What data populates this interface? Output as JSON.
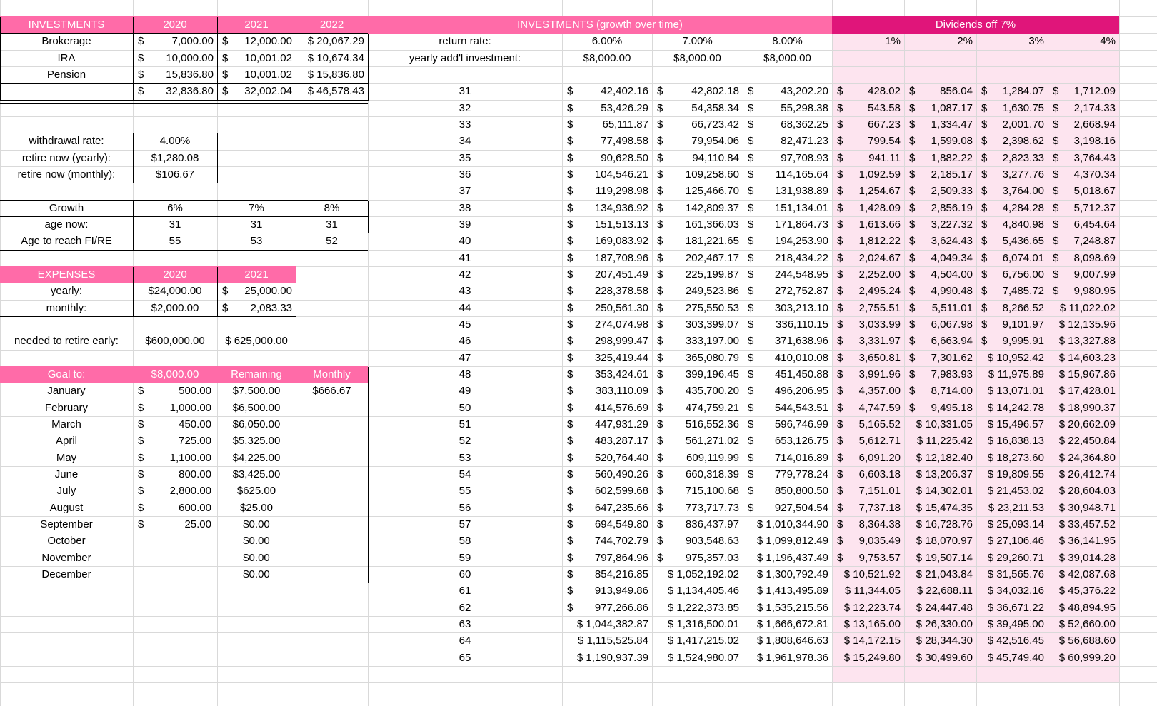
{
  "colors": {
    "header_pink": "#ff6ba8",
    "header_dark": "#e0157a",
    "dividend_fill": "#fde4ef",
    "gridline": "#d9d9d9"
  },
  "investments": {
    "title": "INVESTMENTS",
    "years": [
      "2020",
      "2021",
      "2022"
    ],
    "rows": [
      {
        "label": "Brokerage",
        "values": [
          "7,000.00",
          "12,000.00",
          "$ 20,067.29"
        ]
      },
      {
        "label": "IRA",
        "values": [
          "10,000.00",
          "10,001.02",
          "$ 10,674.34"
        ]
      },
      {
        "label": "Pension",
        "values": [
          "15,836.80",
          "10,001.02",
          "$ 15,836.80"
        ]
      }
    ],
    "totals": [
      "32,836.80",
      "32,002.04",
      "$ 46,578.43"
    ]
  },
  "withdrawal": {
    "rows": [
      {
        "label": "withdrawal rate:",
        "value": "4.00%"
      },
      {
        "label": "retire now (yearly):",
        "value": "$1,280.08"
      },
      {
        "label": "retire now (monthly):",
        "value": "$106.67"
      }
    ]
  },
  "growth": {
    "header": {
      "label": "Growth",
      "values": [
        "6%",
        "7%",
        "8%"
      ]
    },
    "rows": [
      {
        "label": "age now:",
        "values": [
          "31",
          "31",
          "31"
        ]
      },
      {
        "label": "Age to reach FI/RE",
        "values": [
          "55",
          "53",
          "52"
        ]
      }
    ]
  },
  "expenses": {
    "title": "EXPENSES",
    "years": [
      "2020",
      "2021"
    ],
    "rows": [
      {
        "label": "yearly:",
        "values": [
          "$24,000.00",
          "25,000.00"
        ]
      },
      {
        "label": "monthly:",
        "values": [
          "$2,000.00",
          "2,083.33"
        ]
      }
    ],
    "retire_label": "needed to retire early:",
    "retire_values": [
      "$600,000.00",
      "$ 625,000.00"
    ]
  },
  "goal": {
    "headers": [
      "Goal to:",
      "$8,000.00",
      "Remaining",
      "Monthly"
    ],
    "monthly": "$666.67",
    "rows": [
      {
        "month": "January",
        "amount": "500.00",
        "remaining": "$7,500.00"
      },
      {
        "month": "February",
        "amount": "1,000.00",
        "remaining": "$6,500.00"
      },
      {
        "month": "March",
        "amount": "450.00",
        "remaining": "$6,050.00"
      },
      {
        "month": "April",
        "amount": "725.00",
        "remaining": "$5,325.00"
      },
      {
        "month": "May",
        "amount": "1,100.00",
        "remaining": "$4,225.00"
      },
      {
        "month": "June",
        "amount": "800.00",
        "remaining": "$3,425.00"
      },
      {
        "month": "July",
        "amount": "2,800.00",
        "remaining": "$625.00"
      },
      {
        "month": "August",
        "amount": "600.00",
        "remaining": "$25.00"
      },
      {
        "month": "September",
        "amount": "25.00",
        "remaining": "$0.00"
      },
      {
        "month": "October",
        "amount": "",
        "remaining": "$0.00"
      },
      {
        "month": "November",
        "amount": "",
        "remaining": "$0.00"
      },
      {
        "month": "December",
        "amount": "",
        "remaining": "$0.00"
      }
    ]
  },
  "growth_table": {
    "title": "INVESTMENTS (growth over time)",
    "return_label": "return rate:",
    "return_rates": [
      "6.00%",
      "7.00%",
      "8.00%"
    ],
    "add_label": "yearly add'l investment:",
    "add_values": [
      "$8,000.00",
      "$8,000.00",
      "$8,000.00"
    ],
    "dividends_title": "Dividends off 7%",
    "dividend_rates": [
      "1%",
      "2%",
      "3%",
      "4%"
    ],
    "rows": [
      {
        "age": "31",
        "g": [
          "42,402.16",
          "42,802.18",
          "43,202.20"
        ],
        "d": [
          "428.02",
          "856.04",
          "1,284.07",
          "1,712.09"
        ]
      },
      {
        "age": "32",
        "g": [
          "53,426.29",
          "54,358.34",
          "55,298.38"
        ],
        "d": [
          "543.58",
          "1,087.17",
          "1,630.75",
          "2,174.33"
        ]
      },
      {
        "age": "33",
        "g": [
          "65,111.87",
          "66,723.42",
          "68,362.25"
        ],
        "d": [
          "667.23",
          "1,334.47",
          "2,001.70",
          "2,668.94"
        ]
      },
      {
        "age": "34",
        "g": [
          "77,498.58",
          "79,954.06",
          "82,471.23"
        ],
        "d": [
          "799.54",
          "1,599.08",
          "2,398.62",
          "3,198.16"
        ]
      },
      {
        "age": "35",
        "g": [
          "90,628.50",
          "94,110.84",
          "97,708.93"
        ],
        "d": [
          "941.11",
          "1,882.22",
          "2,823.33",
          "3,764.43"
        ]
      },
      {
        "age": "36",
        "g": [
          "104,546.21",
          "109,258.60",
          "114,165.64"
        ],
        "d": [
          "1,092.59",
          "2,185.17",
          "3,277.76",
          "4,370.34"
        ]
      },
      {
        "age": "37",
        "g": [
          "119,298.98",
          "125,466.70",
          "131,938.89"
        ],
        "d": [
          "1,254.67",
          "2,509.33",
          "3,764.00",
          "5,018.67"
        ]
      },
      {
        "age": "38",
        "g": [
          "134,936.92",
          "142,809.37",
          "151,134.01"
        ],
        "d": [
          "1,428.09",
          "2,856.19",
          "4,284.28",
          "5,712.37"
        ]
      },
      {
        "age": "39",
        "g": [
          "151,513.13",
          "161,366.03",
          "171,864.73"
        ],
        "d": [
          "1,613.66",
          "3,227.32",
          "4,840.98",
          "6,454.64"
        ]
      },
      {
        "age": "40",
        "g": [
          "169,083.92",
          "181,221.65",
          "194,253.90"
        ],
        "d": [
          "1,812.22",
          "3,624.43",
          "5,436.65",
          "7,248.87"
        ]
      },
      {
        "age": "41",
        "g": [
          "187,708.96",
          "202,467.17",
          "218,434.22"
        ],
        "d": [
          "2,024.67",
          "4,049.34",
          "6,074.01",
          "8,098.69"
        ]
      },
      {
        "age": "42",
        "g": [
          "207,451.49",
          "225,199.87",
          "244,548.95"
        ],
        "d": [
          "2,252.00",
          "4,504.00",
          "6,756.00",
          "9,007.99"
        ]
      },
      {
        "age": "43",
        "g": [
          "228,378.58",
          "249,523.86",
          "272,752.87"
        ],
        "d": [
          "2,495.24",
          "4,990.48",
          "7,485.72",
          "9,980.95"
        ]
      },
      {
        "age": "44",
        "g": [
          "250,561.30",
          "275,550.53",
          "303,213.10"
        ],
        "d": [
          "2,755.51",
          "5,511.01",
          "8,266.52",
          "$ 11,022.02"
        ]
      },
      {
        "age": "45",
        "g": [
          "274,074.98",
          "303,399.07",
          "336,110.15"
        ],
        "d": [
          "3,033.99",
          "6,067.98",
          "9,101.97",
          "$ 12,135.96"
        ]
      },
      {
        "age": "46",
        "g": [
          "298,999.47",
          "333,197.00",
          "371,638.96"
        ],
        "d": [
          "3,331.97",
          "6,663.94",
          "9,995.91",
          "$ 13,327.88"
        ]
      },
      {
        "age": "47",
        "g": [
          "325,419.44",
          "365,080.79",
          "410,010.08"
        ],
        "d": [
          "3,650.81",
          "7,301.62",
          "$ 10,952.42",
          "$ 14,603.23"
        ]
      },
      {
        "age": "48",
        "g": [
          "353,424.61",
          "399,196.45",
          "451,450.88"
        ],
        "d": [
          "3,991.96",
          "7,983.93",
          "$ 11,975.89",
          "$ 15,967.86"
        ]
      },
      {
        "age": "49",
        "g": [
          "383,110.09",
          "435,700.20",
          "496,206.95"
        ],
        "d": [
          "4,357.00",
          "8,714.00",
          "$ 13,071.01",
          "$ 17,428.01"
        ]
      },
      {
        "age": "50",
        "g": [
          "414,576.69",
          "474,759.21",
          "544,543.51"
        ],
        "d": [
          "4,747.59",
          "9,495.18",
          "$ 14,242.78",
          "$ 18,990.37"
        ]
      },
      {
        "age": "51",
        "g": [
          "447,931.29",
          "516,552.36",
          "596,746.99"
        ],
        "d": [
          "5,165.52",
          "$ 10,331.05",
          "$ 15,496.57",
          "$ 20,662.09"
        ]
      },
      {
        "age": "52",
        "g": [
          "483,287.17",
          "561,271.02",
          "653,126.75"
        ],
        "d": [
          "5,612.71",
          "$ 11,225.42",
          "$ 16,838.13",
          "$ 22,450.84"
        ]
      },
      {
        "age": "53",
        "g": [
          "520,764.40",
          "609,119.99",
          "714,016.89"
        ],
        "d": [
          "6,091.20",
          "$ 12,182.40",
          "$ 18,273.60",
          "$ 24,364.80"
        ]
      },
      {
        "age": "54",
        "g": [
          "560,490.26",
          "660,318.39",
          "779,778.24"
        ],
        "d": [
          "6,603.18",
          "$ 13,206.37",
          "$ 19,809.55",
          "$ 26,412.74"
        ]
      },
      {
        "age": "55",
        "g": [
          "602,599.68",
          "715,100.68",
          "850,800.50"
        ],
        "d": [
          "7,151.01",
          "$ 14,302.01",
          "$ 21,453.02",
          "$ 28,604.03"
        ]
      },
      {
        "age": "56",
        "g": [
          "647,235.66",
          "773,717.73",
          "927,504.54"
        ],
        "d": [
          "7,737.18",
          "$ 15,474.35",
          "$ 23,211.53",
          "$ 30,948.71"
        ]
      },
      {
        "age": "57",
        "g": [
          "694,549.80",
          "836,437.97",
          "$ 1,010,344.90"
        ],
        "d": [
          "8,364.38",
          "$ 16,728.76",
          "$ 25,093.14",
          "$ 33,457.52"
        ]
      },
      {
        "age": "58",
        "g": [
          "744,702.79",
          "903,548.63",
          "$ 1,099,812.49"
        ],
        "d": [
          "9,035.49",
          "$ 18,070.97",
          "$ 27,106.46",
          "$ 36,141.95"
        ]
      },
      {
        "age": "59",
        "g": [
          "797,864.96",
          "975,357.03",
          "$ 1,196,437.49"
        ],
        "d": [
          "9,753.57",
          "$ 19,507.14",
          "$ 29,260.71",
          "$ 39,014.28"
        ]
      },
      {
        "age": "60",
        "g": [
          "854,216.85",
          "$ 1,052,192.02",
          "$ 1,300,792.49"
        ],
        "d": [
          "$ 10,521.92",
          "$ 21,043.84",
          "$ 31,565.76",
          "$ 42,087.68"
        ]
      },
      {
        "age": "61",
        "g": [
          "913,949.86",
          "$ 1,134,405.46",
          "$ 1,413,495.89"
        ],
        "d": [
          "$ 11,344.05",
          "$ 22,688.11",
          "$ 34,032.16",
          "$ 45,376.22"
        ]
      },
      {
        "age": "62",
        "g": [
          "977,266.86",
          "$ 1,222,373.85",
          "$ 1,535,215.56"
        ],
        "d": [
          "$ 12,223.74",
          "$ 24,447.48",
          "$ 36,671.22",
          "$ 48,894.95"
        ]
      },
      {
        "age": "63",
        "g": [
          "$ 1,044,382.87",
          "$ 1,316,500.01",
          "$ 1,666,672.81"
        ],
        "d": [
          "$ 13,165.00",
          "$ 26,330.00",
          "$ 39,495.00",
          "$ 52,660.00"
        ]
      },
      {
        "age": "64",
        "g": [
          "$ 1,115,525.84",
          "$ 1,417,215.02",
          "$ 1,808,646.63"
        ],
        "d": [
          "$ 14,172.15",
          "$ 28,344.30",
          "$ 42,516.45",
          "$ 56,688.60"
        ]
      },
      {
        "age": "65",
        "g": [
          "$ 1,190,937.39",
          "$ 1,524,980.07",
          "$ 1,961,978.36"
        ],
        "d": [
          "$ 15,249.80",
          "$ 30,499.60",
          "$ 45,749.40",
          "$ 60,999.20"
        ]
      }
    ]
  }
}
